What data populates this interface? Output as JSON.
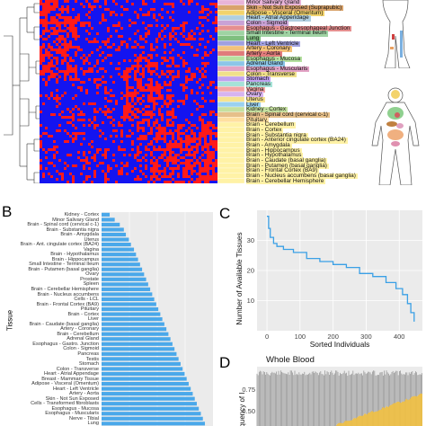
{
  "panels": {
    "b_letter": "B",
    "c_letter": "C",
    "d_letter": "D"
  },
  "panel_a": {
    "tissue_labels": [
      "Minor Salivary Gland",
      "Skin - Not Sun Exposed (Suprapubic)",
      "Adipose - Visceral (Omentum)",
      "Heart - Atrial Appendage",
      "Colon - Sigmoid",
      "Esophagus - Gastroesophageal Junction",
      "Small Intestine - Terminal Ileum",
      "Lung",
      "Heart - Left Ventricle",
      "Artery - Coronary",
      "Artery - Aorta",
      "Esophagus - Mucosa",
      "Adrenal Gland",
      "Esophagus - Muscularis",
      "Colon - Transverse",
      "Stomach",
      "Pancreas",
      "Vagina",
      "Ovary",
      "Uterus",
      "Liver",
      "Kidney - Cortex",
      "Brain - Spinal cord (cervical c-1)",
      "Pituitary",
      "Brain - Cerebellum",
      "Brain - Cortex",
      "Brain - Substantia nigra",
      "Brain - Anterior cingulate cortex (BA24)",
      "Brain - Amygdala",
      "Brain - Hippocampus",
      "Brain - Hypothalamus",
      "Brain - Caudate (basal ganglia)",
      "Brain - Putamen (basal ganglia)",
      "Brain - Frontal Cortex (BA9)",
      "Brain - Nucleus accumbens (basal ganglia)",
      "Brain - Cerebellar Hemisphere"
    ],
    "band_colors": [
      "#e8b4d8",
      "#d9a36b",
      "#f2d36b",
      "#b0cfe0",
      "#c9a2d6",
      "#e58f8f",
      "#9fd3a3",
      "#7fbf7f",
      "#a0a0e0",
      "#f3c27a",
      "#e07b7b",
      "#b5e1a0",
      "#8cc6e8",
      "#e3a3c5",
      "#f0e08a",
      "#c0a0f0",
      "#a6e3d8",
      "#f4a6a6",
      "#d7b4f0",
      "#f7e38f",
      "#9bd1f0",
      "#c5e0a0",
      "#e6c08a",
      "#ffe0a0",
      "#fff2a6",
      "#fff2a6",
      "#fff2a6",
      "#fff2a6",
      "#fff2a6",
      "#fff2a6",
      "#fff2a6",
      "#fff2a6",
      "#fff2a6",
      "#fff2a6",
      "#fff2a6",
      "#fff2a6"
    ]
  },
  "chart_data": [
    {
      "type": "bar",
      "orientation": "horizontal",
      "ylabel": "Tissue",
      "categories": [
        "Kidney - Cortex",
        "Minor Salivary Gland",
        "Brain - Spinal cord (cervical c-1)",
        "Brain - Substantia nigra",
        "Brain - Amygdala",
        "Uterus",
        "Brain - Ant. cingulate cortex (BA24)",
        "Vagina",
        "Brain - Hypothalamus",
        "Brain - Hippocampus",
        "Small Intestine - Terminal Ileum",
        "Brain - Putamen (basal ganglia)",
        "Ovary",
        "Prostate",
        "Spleen",
        "Brain - Cerebellar Hemisphere",
        "Brain - Nucleus accumbens",
        "Cells - LCL",
        "Brain - Frontal Cortex (BA9)",
        "Pituitary",
        "Brain - Cortex",
        "Liver",
        "Brain - Caudate (basal ganglia)",
        "Artery - Coronary",
        "Brain - Cerebellum",
        "Adrenal Gland",
        "Esophagus - Gastro. Junction",
        "Colon - Sigmoid",
        "Pancreas",
        "Testis",
        "Stomach",
        "Colon - Transverse",
        "Heart - Atrial Appendage",
        "Breast - Mammary Tissue",
        "Adipose - Visceral (Omentum)",
        "Heart - Left Ventricle",
        "Artery - Aorta",
        "Skin - Not Sun Exposed",
        "Cells - Transformed fibroblasts",
        "Esophagus - Mucosa",
        "Esophagus - Muscularis",
        "Nerve - Tibial",
        "Lung"
      ],
      "values": [
        8,
        13,
        18,
        22,
        24,
        27,
        29,
        32,
        34,
        36,
        38,
        40,
        42,
        44,
        46,
        48,
        50,
        52,
        54,
        56,
        58,
        60,
        62,
        64,
        66,
        68,
        70,
        72,
        74,
        76,
        78,
        80,
        82,
        84,
        86,
        88,
        90,
        92,
        94,
        96,
        98,
        100,
        102
      ]
    },
    {
      "type": "line",
      "xlabel": "Sorted Individuals",
      "ylabel": "Number of Available Tissues",
      "xticks": [
        0,
        100,
        200,
        300,
        400
      ],
      "yticks": [
        10,
        20,
        30
      ],
      "xlim": [
        -30,
        470
      ],
      "ylim": [
        0,
        40
      ],
      "grid": true,
      "x": [
        0,
        5,
        10,
        20,
        30,
        50,
        80,
        120,
        160,
        200,
        240,
        280,
        320,
        360,
        390,
        410,
        425,
        435,
        445
      ],
      "y": [
        38,
        34,
        31,
        29,
        28,
        27,
        26,
        24,
        23,
        22,
        21,
        19,
        18,
        16,
        14,
        12,
        9,
        6,
        3
      ]
    },
    {
      "type": "line",
      "title": "Whole Blood",
      "ylabel": "Frequency of I",
      "yticks": [
        "0.75",
        "0.50"
      ]
    }
  ]
}
